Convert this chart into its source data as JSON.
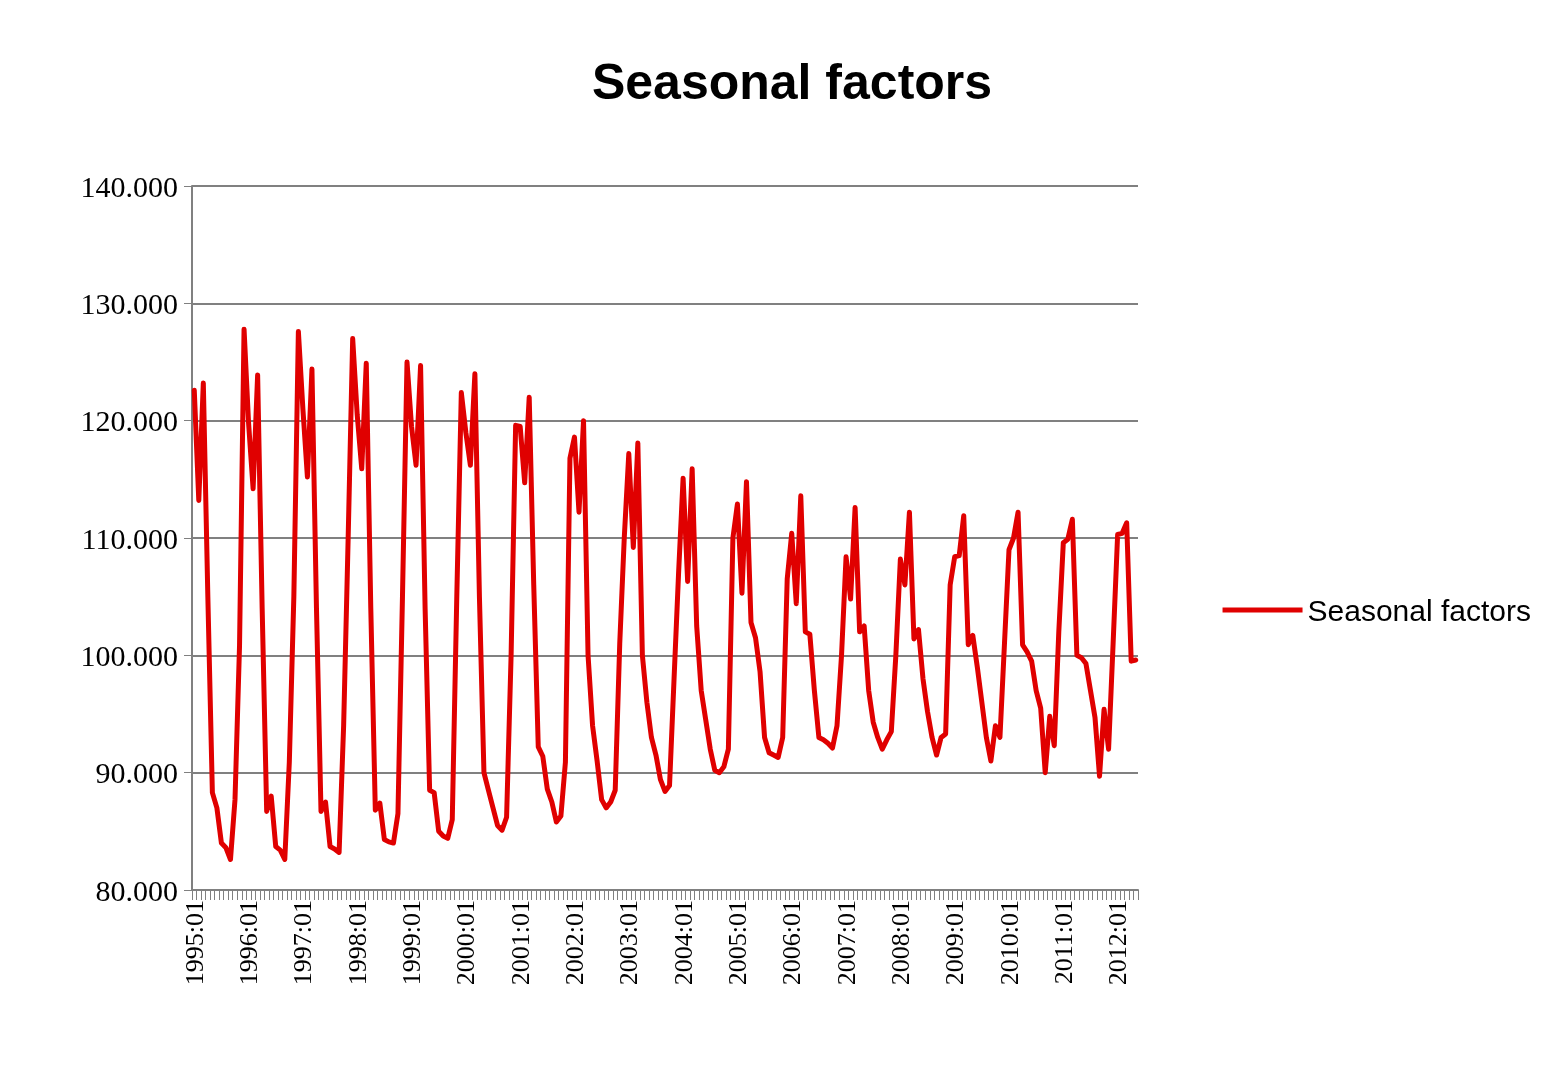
{
  "chart_data": {
    "type": "line",
    "title": "Seasonal factors",
    "categories": [
      "1995:01",
      null,
      null,
      null,
      null,
      null,
      null,
      null,
      null,
      null,
      null,
      null,
      "1996:01",
      null,
      null,
      null,
      null,
      null,
      null,
      null,
      null,
      null,
      null,
      null,
      "1997:01",
      null,
      null,
      null,
      null,
      null,
      null,
      null,
      null,
      null,
      null,
      null,
      "1998:01",
      null,
      null,
      null,
      null,
      null,
      null,
      null,
      null,
      null,
      null,
      null,
      "1999:01",
      null,
      null,
      null,
      null,
      null,
      null,
      null,
      null,
      null,
      null,
      null,
      "2000:01",
      null,
      null,
      null,
      null,
      null,
      null,
      null,
      null,
      null,
      null,
      null,
      "2001:01",
      null,
      null,
      null,
      null,
      null,
      null,
      null,
      null,
      null,
      null,
      null,
      "2002:01",
      null,
      null,
      null,
      null,
      null,
      null,
      null,
      null,
      null,
      null,
      null,
      "2003:01",
      null,
      null,
      null,
      null,
      null,
      null,
      null,
      null,
      null,
      null,
      null,
      "2004:01",
      null,
      null,
      null,
      null,
      null,
      null,
      null,
      null,
      null,
      null,
      null,
      "2005:01",
      null,
      null,
      null,
      null,
      null,
      null,
      null,
      null,
      null,
      null,
      null,
      "2006:01",
      null,
      null,
      null,
      null,
      null,
      null,
      null,
      null,
      null,
      null,
      null,
      "2007:01",
      null,
      null,
      null,
      null,
      null,
      null,
      null,
      null,
      null,
      null,
      null,
      "2008:01",
      null,
      null,
      null,
      null,
      null,
      null,
      null,
      null,
      null,
      null,
      null,
      "2009:01",
      null,
      null,
      null,
      null,
      null,
      null,
      null,
      null,
      null,
      null,
      null,
      "2010:01",
      null,
      null,
      null,
      null,
      null,
      null,
      null,
      null,
      null,
      null,
      null,
      "2011:01",
      null,
      null,
      null,
      null,
      null,
      null,
      null,
      null,
      null,
      null,
      null,
      "2012:01",
      null,
      null,
      null,
      null
    ],
    "series": [
      {
        "name": "Seasonal factors",
        "color": "#e00000",
        "values": [
          122.6,
          113.2,
          123.2,
          105,
          88.3,
          87,
          84,
          83.6,
          82.6,
          87.7,
          100.8,
          127.8,
          119.8,
          114.2,
          123.9,
          104,
          86.7,
          88,
          83.7,
          83.4,
          82.6,
          90.9,
          105,
          127.6,
          121,
          115.2,
          124.4,
          104,
          86.7,
          87.5,
          83.7,
          83.5,
          83.2,
          94,
          110,
          127,
          120.5,
          115.9,
          124.9,
          104,
          86.8,
          87.4,
          84.3,
          84.1,
          84,
          86.5,
          105,
          125,
          119.5,
          116.2,
          124.7,
          104,
          88.5,
          88.3,
          85,
          84.6,
          84.4,
          86,
          105,
          122.4,
          119,
          116.2,
          124,
          105,
          90,
          88.5,
          87,
          85.5,
          85.1,
          86.2,
          100,
          119.6,
          119.5,
          114.7,
          122,
          106,
          92.2,
          91.4,
          88.6,
          87.5,
          85.8,
          86.3,
          90.9,
          116.8,
          118.6,
          112.2,
          120,
          100,
          94,
          91,
          87.7,
          87,
          87.5,
          88.5,
          101,
          110,
          117.2,
          109.2,
          118.1,
          100,
          96,
          93,
          91.5,
          89.4,
          88.4,
          88.9,
          98,
          107,
          115.1,
          106.3,
          115.9,
          102.5,
          97,
          94.5,
          92,
          90.2,
          90,
          90.5,
          92,
          110,
          112.9,
          105.3,
          114.8,
          102.8,
          101.5,
          98.6,
          93,
          91.7,
          91.5,
          91.3,
          93,
          106.5,
          110.4,
          104.4,
          113.6,
          102,
          101.8,
          97,
          93,
          92.8,
          92.5,
          92.1,
          94,
          100,
          108.4,
          104.8,
          112.6,
          102,
          102.5,
          97,
          94.3,
          93,
          92,
          92.8,
          93.5,
          100,
          108.2,
          106,
          112.2,
          101.4,
          102.2,
          98,
          95.2,
          93,
          91.5,
          93,
          93.3,
          106,
          108.4,
          108.5,
          111.9,
          100.9,
          101.7,
          99,
          96,
          93,
          91,
          94,
          93,
          101,
          109,
          110,
          112.2,
          100.9,
          100.3,
          99.5,
          97,
          95.5,
          90,
          94.8,
          92.3,
          102,
          109.6,
          109.9,
          111.6,
          100,
          99.8,
          99.3,
          97,
          94.7,
          89.7,
          95.4,
          92,
          101,
          110.3,
          110.4,
          111.3,
          99.5,
          99.6
        ]
      }
    ],
    "ylim": [
      80,
      140
    ],
    "yticks": [
      {
        "value": 80,
        "label": "80.000"
      },
      {
        "value": 90,
        "label": "90.000"
      },
      {
        "value": 100,
        "label": "100.000"
      },
      {
        "value": 110,
        "label": "110.000"
      },
      {
        "value": 120,
        "label": "120.000"
      },
      {
        "value": 130,
        "label": "130.000"
      },
      {
        "value": 140,
        "label": "140.000"
      }
    ],
    "grid": "y",
    "legend": "right",
    "marker": "none",
    "line_style": "solid"
  }
}
